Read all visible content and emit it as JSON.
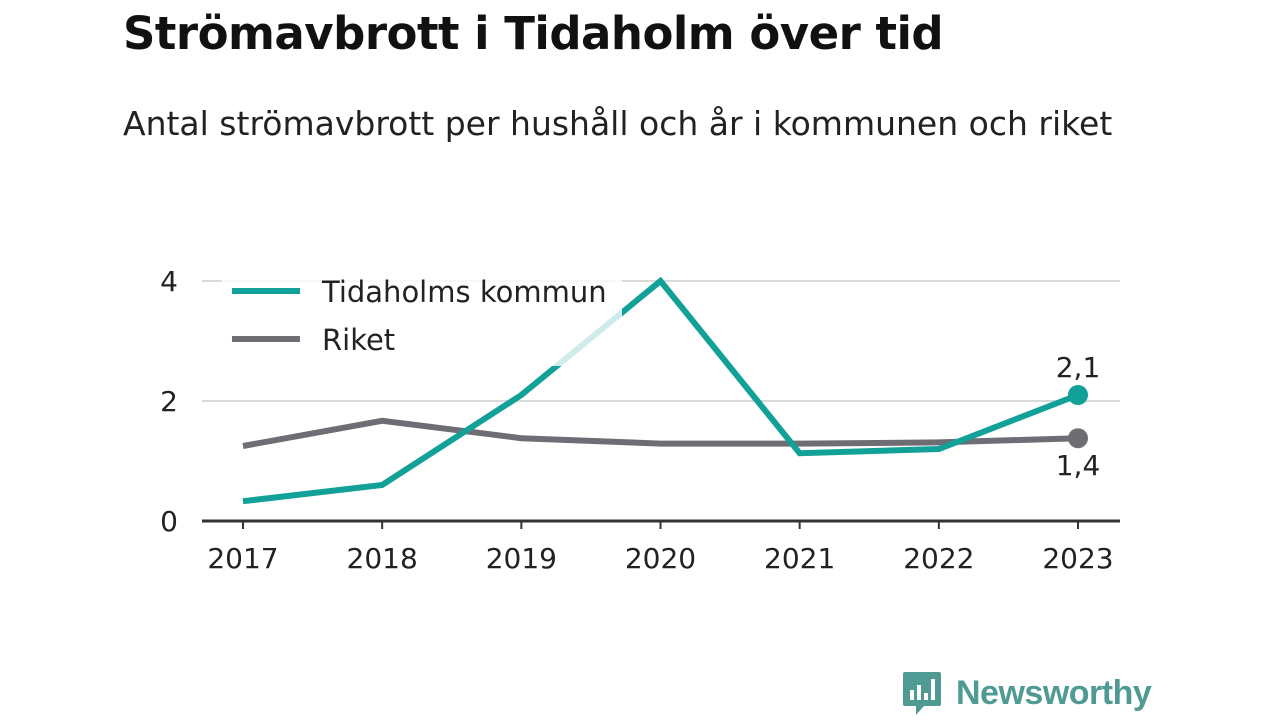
{
  "title": "Strömavbrott i Tidaholm över tid",
  "subtitle": "Antal strömavbrott per hushåll och år i kommunen och riket",
  "brand": {
    "name": "Newsworthy",
    "icon": "newsworthy-logo-icon",
    "color": "#4f9b94"
  },
  "chart_data": {
    "type": "line",
    "x": [
      "2017",
      "2018",
      "2019",
      "2020",
      "2021",
      "2022",
      "2023"
    ],
    "ylim": [
      0,
      4
    ],
    "yticks": [
      "0",
      "2",
      "4"
    ],
    "grid": true,
    "legend_position": "top-left",
    "series": [
      {
        "name": "Tidaholms kommun",
        "color": "#12a198",
        "values": [
          0.33,
          0.6,
          2.1,
          4.0,
          1.13,
          1.2,
          2.1
        ],
        "end_label": "2,1"
      },
      {
        "name": "Riket",
        "color": "#6e6d74",
        "values": [
          1.25,
          1.67,
          1.38,
          1.29,
          1.29,
          1.31,
          1.38
        ],
        "end_label": "1,4"
      }
    ]
  }
}
